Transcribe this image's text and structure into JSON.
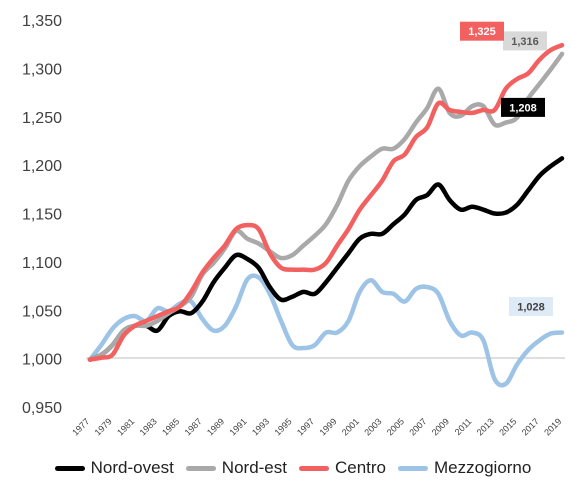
{
  "chart_data": {
    "type": "line",
    "title": "",
    "xlabel": "",
    "ylabel": "",
    "ylim": [
      0.95,
      1.35
    ],
    "ytick_labels": [
      "0,950",
      "1,000",
      "1,050",
      "1,100",
      "1,150",
      "1,200",
      "1,250",
      "1,300",
      "1,350"
    ],
    "x": [
      1977,
      1978,
      1979,
      1980,
      1981,
      1982,
      1983,
      1984,
      1985,
      1986,
      1987,
      1988,
      1989,
      1990,
      1991,
      1992,
      1993,
      1994,
      1995,
      1996,
      1997,
      1998,
      1999,
      2000,
      2001,
      2002,
      2003,
      2004,
      2005,
      2006,
      2007,
      2008,
      2009,
      2010,
      2011,
      2012,
      2013,
      2014,
      2015,
      2016,
      2017,
      2018,
      2019
    ],
    "xtick_labels": [
      "1977",
      "1979",
      "1981",
      "1983",
      "1985",
      "1987",
      "1989",
      "1991",
      "1993",
      "1995",
      "1997",
      "1999",
      "2001",
      "2003",
      "2005",
      "2007",
      "2009",
      "2011",
      "2013",
      "2015",
      "2017",
      "2019"
    ],
    "series": [
      {
        "name": "Nord-ovest",
        "color": "#000000",
        "end_label": "1,208",
        "values": [
          1.0,
          1.005,
          1.015,
          1.03,
          1.035,
          1.035,
          1.03,
          1.045,
          1.05,
          1.048,
          1.06,
          1.08,
          1.095,
          1.108,
          1.104,
          1.095,
          1.075,
          1.062,
          1.065,
          1.07,
          1.068,
          1.08,
          1.095,
          1.11,
          1.125,
          1.13,
          1.13,
          1.14,
          1.15,
          1.165,
          1.17,
          1.181,
          1.165,
          1.155,
          1.158,
          1.155,
          1.151,
          1.152,
          1.16,
          1.175,
          1.19,
          1.2,
          1.208
        ]
      },
      {
        "name": "Nord-est",
        "color": "#a9a9a9",
        "end_label": "1,316",
        "values": [
          1.0,
          1.005,
          1.015,
          1.03,
          1.035,
          1.035,
          1.04,
          1.048,
          1.055,
          1.065,
          1.088,
          1.1,
          1.115,
          1.133,
          1.125,
          1.12,
          1.112,
          1.105,
          1.108,
          1.118,
          1.128,
          1.14,
          1.16,
          1.185,
          1.2,
          1.21,
          1.218,
          1.218,
          1.228,
          1.245,
          1.26,
          1.28,
          1.255,
          1.252,
          1.262,
          1.262,
          1.243,
          1.245,
          1.25,
          1.27,
          1.285,
          1.3,
          1.316
        ]
      },
      {
        "name": "Centro",
        "color": "#f26060",
        "end_label": "1,325",
        "values": [
          1.0,
          1.002,
          1.005,
          1.025,
          1.035,
          1.04,
          1.045,
          1.05,
          1.055,
          1.07,
          1.09,
          1.105,
          1.118,
          1.135,
          1.139,
          1.135,
          1.11,
          1.095,
          1.093,
          1.093,
          1.093,
          1.1,
          1.118,
          1.135,
          1.155,
          1.17,
          1.185,
          1.205,
          1.212,
          1.23,
          1.24,
          1.265,
          1.258,
          1.256,
          1.255,
          1.258,
          1.258,
          1.28,
          1.29,
          1.296,
          1.31,
          1.32,
          1.325
        ]
      },
      {
        "name": "Mezzogiorno",
        "color": "#9dc3e6",
        "end_label": "1,028",
        "values": [
          1.0,
          1.015,
          1.032,
          1.042,
          1.045,
          1.04,
          1.053,
          1.05,
          1.058,
          1.06,
          1.042,
          1.03,
          1.035,
          1.055,
          1.083,
          1.085,
          1.068,
          1.04,
          1.015,
          1.012,
          1.015,
          1.028,
          1.028,
          1.04,
          1.07,
          1.082,
          1.07,
          1.068,
          1.06,
          1.073,
          1.075,
          1.068,
          1.04,
          1.025,
          1.028,
          1.02,
          0.98,
          0.975,
          0.995,
          1.01,
          1.02,
          1.027,
          1.028
        ]
      }
    ],
    "legend_position": "bottom",
    "grid": false
  }
}
